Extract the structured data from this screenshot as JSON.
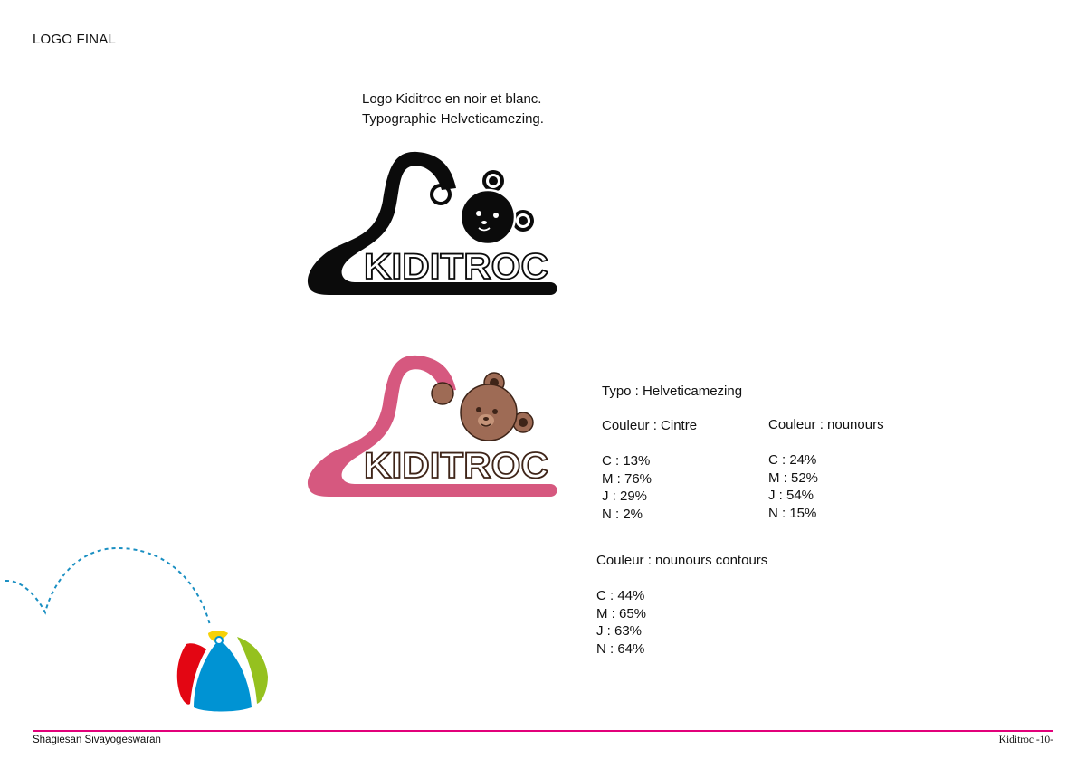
{
  "page": {
    "section_title": "LOGO FINAL",
    "caption": {
      "line1": "Logo Kiditroc en noir et blanc.",
      "line2": "Typographie Helveticamezing."
    }
  },
  "logo": {
    "wordmark": "KIDITROC",
    "bw_hanger_color": "#0b0b0b",
    "color_hanger_color": "#d6587f",
    "bear_color": "#9e6b55",
    "bear_outline_color": "#3e2418"
  },
  "specs": {
    "typo": "Typo : Helveticamezing",
    "cintre": {
      "title": "Couleur : Cintre",
      "values": [
        "C : 13%",
        "M : 76%",
        "J : 29%",
        "N : 2%"
      ]
    },
    "nounours": {
      "title": "Couleur : nounours",
      "values": [
        "C : 24%",
        "M : 52%",
        "J : 54%",
        "N : 15%"
      ]
    },
    "contours": {
      "title": "Couleur : nounours contours",
      "values": [
        "C : 44%",
        "M : 65%",
        "J : 63%",
        "N : 64%"
      ]
    }
  },
  "decor": {
    "ball_colors": [
      "#e30613",
      "#f6d108",
      "#0093d3",
      "#95c11f",
      "#ffffff"
    ],
    "dotted_path_color": "#1a8fc2",
    "accent_line_color": "#e2007a"
  },
  "footer": {
    "author": "Shagiesan Sivayogeswaran",
    "page_label": "Kiditroc -10-"
  }
}
